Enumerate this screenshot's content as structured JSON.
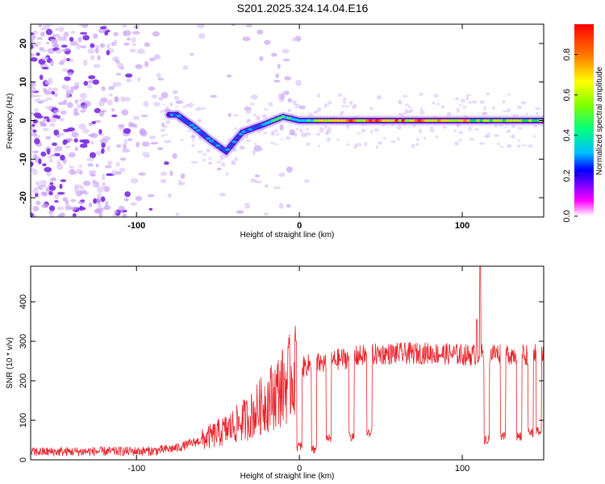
{
  "title": "S201.2025.324.14.04.E16",
  "chart_data": [
    {
      "type": "heatmap",
      "name": "spectrogram",
      "xlabel": "Height of straight line (km)",
      "ylabel": "Frequency (Hz)",
      "xlim": [
        -165,
        150
      ],
      "ylim": [
        -25,
        25
      ],
      "xticks": [
        -100,
        0,
        100
      ],
      "yticks": [
        -20,
        -10,
        0,
        10,
        20
      ],
      "colorbar": {
        "label": "Normalized spectral amplitude",
        "range": [
          0,
          0.95
        ],
        "ticks": [
          0.0,
          0.2,
          0.4,
          0.6,
          0.8
        ],
        "tick_labels": [
          "0.0",
          "0.2",
          "0.4",
          "0.6",
          "0.8"
        ],
        "colormap": [
          "#ffffff",
          "#ff00ff",
          "#8000ff",
          "#0000ff",
          "#00c0ff",
          "#00ff80",
          "#80ff00",
          "#ffff00",
          "#ff8000",
          "#ff0000"
        ]
      },
      "ridge": [
        {
          "x": -75,
          "f": 1.5
        },
        {
          "x": -65,
          "f": -1.5
        },
        {
          "x": -55,
          "f": -5
        },
        {
          "x": -45,
          "f": -8
        },
        {
          "x": -35,
          "f": -3
        },
        {
          "x": -22,
          "f": -1
        },
        {
          "x": -10,
          "f": 1
        },
        {
          "x": 0,
          "f": 0
        },
        {
          "x": 20,
          "f": 0
        },
        {
          "x": 60,
          "f": 0
        },
        {
          "x": 100,
          "f": 0
        },
        {
          "x": 150,
          "f": 0
        }
      ]
    },
    {
      "type": "line",
      "name": "snr",
      "xlabel": "Height of straight line (km)",
      "ylabel": "SNR (10 * v/v)",
      "xlim": [
        -165,
        150
      ],
      "ylim": [
        0,
        490
      ],
      "xticks": [
        -100,
        0,
        100
      ],
      "yticks": [
        0,
        100,
        200,
        300,
        400
      ],
      "color": "#e8232a",
      "envelope": [
        {
          "x": -165,
          "y": 20
        },
        {
          "x": -90,
          "y": 22
        },
        {
          "x": -75,
          "y": 30
        },
        {
          "x": -60,
          "y": 50
        },
        {
          "x": -45,
          "y": 75
        },
        {
          "x": -30,
          "y": 110
        },
        {
          "x": -20,
          "y": 150
        },
        {
          "x": -10,
          "y": 185
        },
        {
          "x": -2,
          "y": 225
        },
        {
          "x": 5,
          "y": 240
        },
        {
          "x": 15,
          "y": 245
        },
        {
          "x": 25,
          "y": 255
        },
        {
          "x": 35,
          "y": 262
        },
        {
          "x": 50,
          "y": 268
        },
        {
          "x": 80,
          "y": 270
        },
        {
          "x": 105,
          "y": 265
        },
        {
          "x": 115,
          "y": 270
        },
        {
          "x": 150,
          "y": 265
        }
      ],
      "dropouts": [
        {
          "x": 0,
          "y": 20
        },
        {
          "x": 9,
          "y": 15
        },
        {
          "x": 18,
          "y": 40
        },
        {
          "x": 32,
          "y": 45
        },
        {
          "x": 43,
          "y": 55
        },
        {
          "x": 115,
          "y": 40
        },
        {
          "x": 125,
          "y": 50
        },
        {
          "x": 135,
          "y": 45
        },
        {
          "x": 142,
          "y": 55
        },
        {
          "x": 147,
          "y": 60
        }
      ],
      "spikes": [
        {
          "x": -2,
          "y": 300
        },
        {
          "x": 109,
          "y": 355
        },
        {
          "x": 111,
          "y": 490
        }
      ]
    }
  ]
}
